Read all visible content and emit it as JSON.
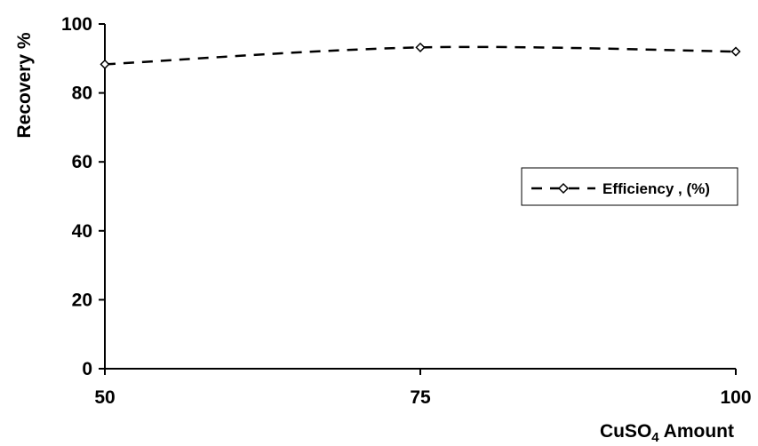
{
  "chart_data": {
    "type": "line",
    "title": "",
    "xlabel": "CuSO",
    "xlabel_subscript": "4",
    "xlabel_suffix": " Amount",
    "ylabel": "Recovery %",
    "x": [
      50,
      75,
      100
    ],
    "xlim": [
      50,
      100
    ],
    "ylim": [
      0,
      100
    ],
    "x_ticks": [
      "50",
      "75",
      "100"
    ],
    "y_ticks": [
      "0",
      "20",
      "40",
      "60",
      "80",
      "100"
    ],
    "y_tick_values": [
      0,
      20,
      40,
      60,
      80,
      100
    ],
    "x_tick_values": [
      50,
      75,
      100
    ],
    "grid": false,
    "legend_position": "right",
    "series": [
      {
        "name": "Efficiency , (%)",
        "values": [
          88.3,
          93.2,
          92
        ],
        "color": "#000000",
        "line_style": "dashed",
        "marker": "diamond-open"
      }
    ]
  }
}
